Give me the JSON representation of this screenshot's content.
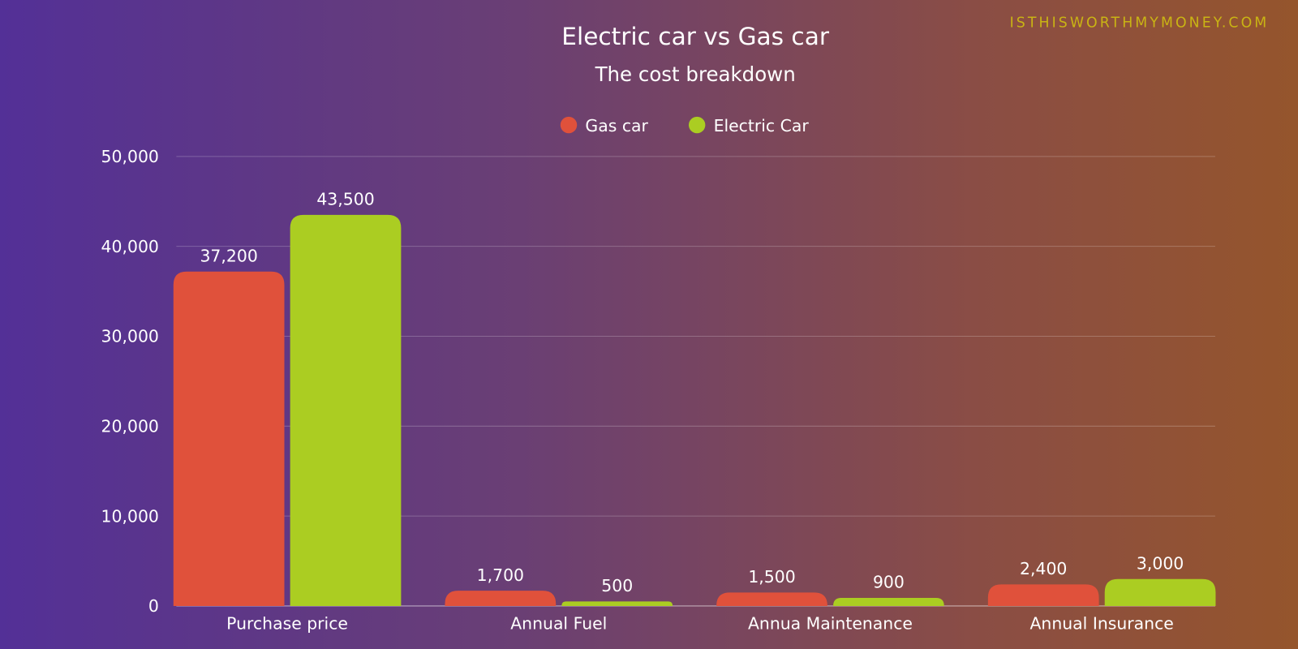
{
  "watermark": "ISTHISWORTHMYMONEY.COM",
  "colors": {
    "gas": "#e0513b",
    "electric": "#abcd22",
    "watermark": "#c9b414"
  },
  "chart_data": {
    "type": "bar",
    "title": "Electric car vs Gas car",
    "subtitle": "The cost breakdown",
    "categories": [
      "Purchase price",
      "Annual Fuel",
      "Annua Maintenance",
      "Annual Insurance"
    ],
    "series": [
      {
        "name": "Gas car",
        "values": [
          37200,
          1700,
          1500,
          2400
        ],
        "labels": [
          "37,200",
          "1,700",
          "1,500",
          "2,400"
        ]
      },
      {
        "name": "Electric Car",
        "values": [
          43500,
          500,
          900,
          3000
        ],
        "labels": [
          "43,500",
          "500",
          "900",
          "3,000"
        ]
      }
    ],
    "yticks": [
      "0",
      "10,000",
      "20,000",
      "30,000",
      "40,000",
      "50,000"
    ],
    "ylim": [
      0,
      50000
    ],
    "grid": true,
    "legend": "top-center"
  }
}
